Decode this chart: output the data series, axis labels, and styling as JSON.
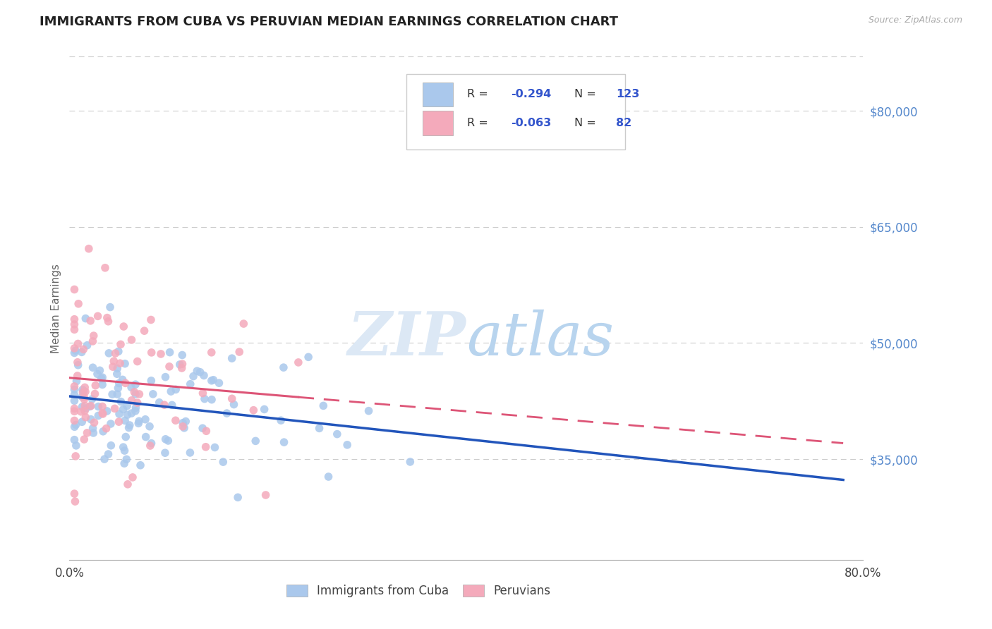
{
  "title": "IMMIGRANTS FROM CUBA VS PERUVIAN MEDIAN EARNINGS CORRELATION CHART",
  "source_text": "Source: ZipAtlas.com",
  "ylabel": "Median Earnings",
  "series": [
    {
      "name": "Immigrants from Cuba",
      "R": -0.294,
      "N": 123,
      "scatter_color": "#aac8ec",
      "line_color": "#2255bb",
      "line_style": "solid"
    },
    {
      "name": "Peruvians",
      "R": -0.063,
      "N": 82,
      "scatter_color": "#f4aabb",
      "line_color": "#dd5577",
      "line_style": "dashed"
    }
  ],
  "xlim": [
    0.0,
    0.8
  ],
  "ylim": [
    22000,
    87000
  ],
  "yticks": [
    35000,
    50000,
    65000,
    80000
  ],
  "ytick_labels": [
    "$35,000",
    "$50,000",
    "$65,000",
    "$80,000"
  ],
  "xticks": [
    0.0,
    0.8
  ],
  "xtick_labels": [
    "0.0%",
    "80.0%"
  ],
  "grid_color": "#cccccc",
  "background_color": "#ffffff",
  "title_fontsize": 13,
  "ytick_color": "#5588cc",
  "watermark_color": "#dce8f5",
  "legend_value_color": "#3355cc"
}
